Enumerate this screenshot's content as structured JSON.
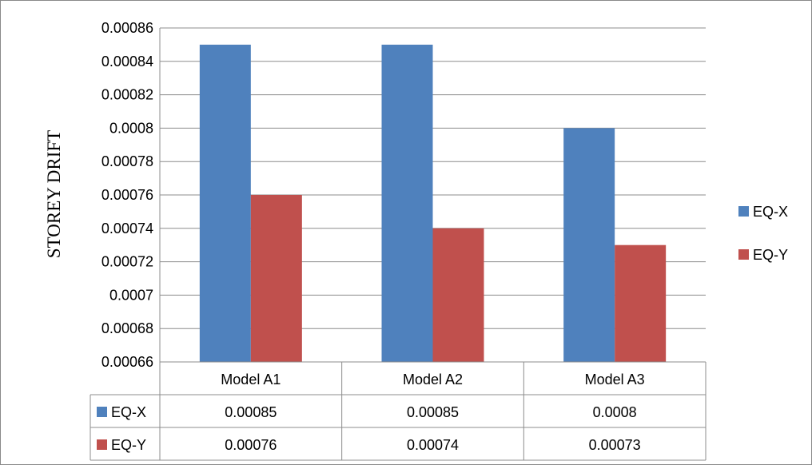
{
  "chart_data": {
    "type": "bar",
    "title": "",
    "xlabel": "",
    "ylabel": "STOREY DRIFT",
    "categories": [
      "Model A1",
      "Model A2",
      "Model A3"
    ],
    "series": [
      {
        "name": "EQ-X",
        "color": "#4F81BD",
        "values": [
          0.00085,
          0.00085,
          0.0008
        ],
        "value_labels": [
          "0.00085",
          "0.00085",
          "0.0008"
        ]
      },
      {
        "name": "EQ-Y",
        "color": "#C0504D",
        "values": [
          0.00076,
          0.00074,
          0.00073
        ],
        "value_labels": [
          "0.00076",
          "0.00074",
          "0.00073"
        ]
      }
    ],
    "ylim": [
      0.00066,
      0.00086
    ],
    "y_ticks": [
      0.00066,
      0.00068,
      0.0007,
      0.00072,
      0.00074,
      0.00076,
      0.00078,
      0.0008,
      0.00082,
      0.00084,
      0.00086
    ],
    "y_tick_labels": [
      "0.00066",
      "0.00068",
      "0.0007",
      "0.00072",
      "0.00074",
      "0.00076",
      "0.00078",
      "0.0008",
      "0.00082",
      "0.00084",
      "0.00086"
    ],
    "grid": true,
    "legend_position": "right",
    "data_table": true
  }
}
